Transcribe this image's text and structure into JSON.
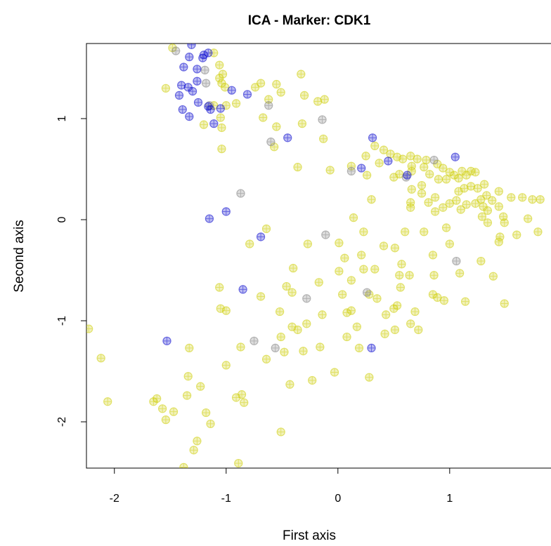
{
  "chart_data": {
    "type": "scatter",
    "title": "ICA - Marker: CDK1",
    "x_label": "First axis",
    "y_label": "Second axis",
    "xlim": [
      -2.25,
      1.85
    ],
    "ylim": [
      -2.458,
      1.743
    ],
    "xticks": [
      -2,
      -1,
      0,
      1
    ],
    "yticks": [
      -2,
      -1,
      0,
      1
    ],
    "series": [
      {
        "color": "#cdcd00",
        "x": [
          -1.48,
          -1.11,
          -1.06,
          -1.03,
          -1.04,
          -1.01,
          -1.06,
          -1.54,
          -1.11,
          -1.0,
          -0.91,
          -1.05,
          -1.04,
          -1.2,
          -1.04,
          -0.74,
          -0.69,
          -0.55,
          -0.51,
          -0.33,
          -0.3,
          -0.12,
          -0.18,
          -0.62,
          -0.67,
          -0.55,
          -0.32,
          -0.57,
          -0.13,
          -0.36,
          -0.07,
          0.25,
          0.33,
          0.41,
          0.47,
          0.53,
          0.58,
          0.65,
          0.71,
          0.79,
          0.89,
          0.94,
          1.0,
          1.04,
          1.08,
          1.11,
          1.15,
          1.19,
          1.23,
          0.5,
          0.55,
          0.66,
          0.77,
          0.82,
          0.9,
          0.97,
          1.13,
          1.19,
          1.25,
          1.31,
          1.33,
          1.28,
          1.38,
          1.44,
          1.34,
          1.3,
          1.23,
          1.15,
          1.06,
          1.0,
          0.94,
          0.87,
          0.81,
          0.75,
          0.66,
          0.65,
          0.65,
          0.75,
          0.12,
          0.26,
          0.37,
          0.66,
          0.3,
          0.14,
          0.87,
          1.08,
          1.1,
          1.29,
          1.34,
          1.44,
          1.48,
          1.45,
          1.44,
          1.55,
          1.65,
          1.74,
          1.81,
          1.7,
          1.79,
          1.6,
          1.49,
          -0.64,
          -0.79,
          -0.27,
          0.01,
          0.23,
          0.6,
          0.77,
          0.97,
          0.51,
          0.41,
          0.57,
          0.21,
          0.06,
          0.33,
          0.23,
          0.55,
          0.64,
          0.85,
          1.0,
          0.86,
          1.09,
          1.28,
          1.39,
          -0.4,
          -1.06,
          -0.69,
          -0.46,
          -0.41,
          -0.17,
          0.01,
          0.12,
          0.04,
          0.28,
          0.35,
          0.56,
          0.85,
          0.89,
          0.95,
          1.14,
          1.49,
          0.53,
          0.5,
          0.43,
          0.69,
          0.12,
          0.08,
          -1.05,
          -1.0,
          -0.14,
          -0.52,
          0.17,
          0.42,
          0.51,
          0.65,
          0.72,
          -0.41,
          -0.36,
          -0.28,
          -0.87,
          -0.64,
          -0.51,
          -0.48,
          -0.31,
          -0.16,
          0.08,
          0.19,
          -1.33,
          -2.12,
          -1.0,
          -1.34,
          -1.23,
          -0.43,
          -0.23,
          -0.03,
          0.28,
          -2.23,
          -2.06,
          -1.35,
          -1.65,
          -1.62,
          -1.57,
          -1.47,
          -1.54,
          -1.18,
          -1.14,
          -0.91,
          -0.86,
          -0.84,
          -0.51,
          -1.26,
          -1.29,
          -1.38,
          -0.89
        ],
        "values": [
          1.7,
          1.65,
          1.53,
          1.44,
          1.35,
          1.31,
          1.4,
          1.3,
          1.13,
          1.13,
          1.15,
          1.01,
          0.91,
          0.94,
          0.7,
          1.31,
          1.35,
          1.34,
          1.26,
          1.44,
          1.23,
          1.19,
          1.17,
          1.19,
          1.01,
          0.92,
          0.95,
          0.72,
          0.8,
          0.52,
          0.49,
          0.63,
          0.73,
          0.69,
          0.65,
          0.62,
          0.6,
          0.63,
          0.6,
          0.59,
          0.55,
          0.51,
          0.47,
          0.44,
          0.41,
          0.48,
          0.44,
          0.48,
          0.47,
          0.42,
          0.45,
          0.48,
          0.52,
          0.45,
          0.4,
          0.4,
          0.31,
          0.33,
          0.31,
          0.35,
          0.24,
          0.2,
          0.19,
          0.28,
          0.09,
          0.13,
          0.16,
          0.15,
          0.19,
          0.16,
          0.12,
          0.22,
          0.17,
          0.26,
          0.3,
          0.17,
          0.12,
          0.34,
          0.53,
          0.44,
          0.56,
          0.53,
          0.2,
          0.02,
          0.08,
          0.28,
          0.1,
          0.03,
          -0.03,
          0.13,
          0.03,
          -0.17,
          -0.22,
          0.22,
          0.22,
          0.2,
          0.2,
          0.01,
          -0.12,
          -0.15,
          -0.03,
          -0.09,
          -0.24,
          -0.24,
          -0.23,
          -0.12,
          -0.12,
          -0.12,
          -0.08,
          -0.28,
          -0.26,
          -0.44,
          -0.35,
          -0.38,
          -0.49,
          -0.49,
          -0.55,
          -0.55,
          -0.35,
          -0.24,
          -0.55,
          -0.53,
          -0.41,
          -0.56,
          -0.48,
          -0.67,
          -0.76,
          -0.66,
          -0.72,
          -0.62,
          -0.51,
          -0.6,
          -0.74,
          -0.74,
          -0.78,
          -0.67,
          -0.74,
          -0.77,
          -0.8,
          -0.81,
          -0.83,
          -0.85,
          -0.88,
          -0.94,
          -0.91,
          -0.9,
          -0.92,
          -0.88,
          -0.9,
          -0.94,
          -0.91,
          -1.06,
          -1.13,
          -1.09,
          -1.03,
          -1.09,
          -1.06,
          -1.09,
          -1.03,
          -1.26,
          -1.38,
          -1.16,
          -1.31,
          -1.3,
          -1.26,
          -1.16,
          -1.27,
          -1.27,
          -1.37,
          -1.44,
          -1.55,
          -1.65,
          -1.63,
          -1.59,
          -1.51,
          -1.56,
          -1.08,
          -1.8,
          -1.74,
          -1.8,
          -1.77,
          -1.87,
          -1.9,
          -1.98,
          -1.91,
          -2.02,
          -1.76,
          -1.73,
          -1.81,
          -2.1,
          -2.19,
          -2.28,
          -2.45,
          -2.41
        ]
      },
      {
        "color": "#7f7f7f",
        "x": [
          -1.45,
          -1.19,
          -1.18,
          -1.15,
          -0.62,
          -0.14,
          -0.6,
          -0.87,
          0.12,
          0.86,
          -0.11,
          0.26,
          -0.28,
          -0.75,
          -0.56,
          1.06,
          0.61
        ],
        "values": [
          1.67,
          1.48,
          1.35,
          1.13,
          1.13,
          0.99,
          0.77,
          0.26,
          0.48,
          0.59,
          -0.15,
          -0.72,
          -0.78,
          -1.2,
          -1.27,
          -0.41,
          0.42
        ]
      },
      {
        "color": "#0000cd",
        "x": [
          -1.31,
          -1.2,
          -1.21,
          -1.33,
          -1.16,
          -1.38,
          -1.26,
          -1.26,
          -1.34,
          -1.4,
          -1.3,
          -1.42,
          -1.25,
          -1.14,
          -1.16,
          -1.39,
          -1.33,
          -1.11,
          -1.05,
          -0.95,
          -0.81,
          -0.45,
          0.31,
          0.21,
          0.45,
          0.62,
          1.05,
          -1.0,
          -1.15,
          -0.69,
          -0.85,
          -1.53,
          0.3
        ],
        "values": [
          1.73,
          1.63,
          1.6,
          1.61,
          1.65,
          1.51,
          1.49,
          1.37,
          1.31,
          1.33,
          1.27,
          1.23,
          1.16,
          1.09,
          1.12,
          1.09,
          1.02,
          0.95,
          1.1,
          1.28,
          1.24,
          0.81,
          0.81,
          0.51,
          0.58,
          0.44,
          0.62,
          0.08,
          0.01,
          -0.17,
          -0.69,
          -1.2,
          -1.27
        ]
      }
    ]
  }
}
